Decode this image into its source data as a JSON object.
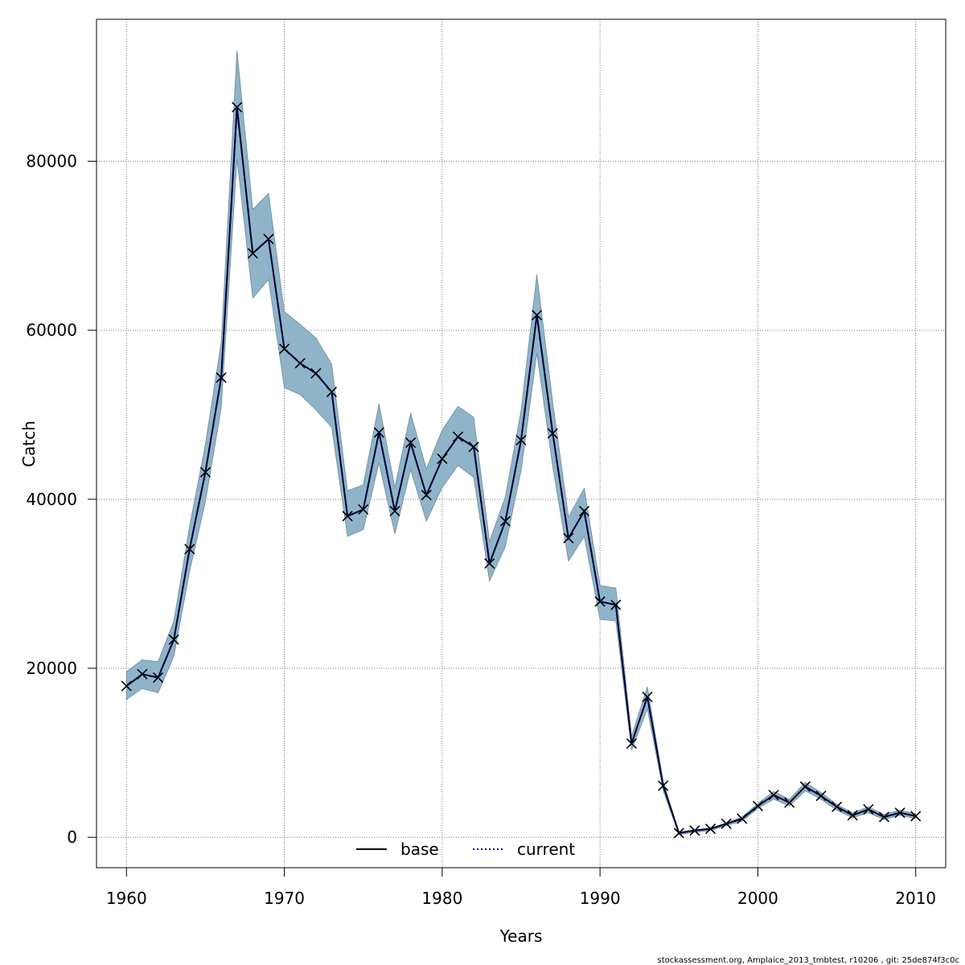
{
  "chart_data": {
    "type": "line",
    "xlabel": "Years",
    "ylabel": "Catch",
    "xlim": [
      1958.1,
      2011.9
    ],
    "ylim": [
      -3600,
      96800
    ],
    "xticks": [
      1960,
      1970,
      1980,
      1990,
      2000,
      2010
    ],
    "yticks": [
      0,
      20000,
      40000,
      60000,
      80000
    ],
    "grid": true,
    "legend_position": "bottom-center",
    "x": [
      1960,
      1961,
      1962,
      1963,
      1964,
      1965,
      1966,
      1967,
      1968,
      1969,
      1970,
      1971,
      1972,
      1973,
      1974,
      1975,
      1976,
      1977,
      1978,
      1979,
      1980,
      1981,
      1982,
      1983,
      1984,
      1985,
      1986,
      1987,
      1988,
      1989,
      1990,
      1991,
      1992,
      1993,
      1994,
      1995,
      1996,
      1997,
      1998,
      1999,
      2000,
      2001,
      2002,
      2003,
      2004,
      2005,
      2006,
      2007,
      2008,
      2009,
      2010
    ],
    "observed": [
      17900,
      19300,
      18900,
      23400,
      34100,
      43200,
      54400,
      86400,
      69100,
      70800,
      57800,
      56100,
      54900,
      52700,
      38000,
      38800,
      47900,
      38600,
      46700,
      40500,
      44800,
      47400,
      46200,
      32400,
      37400,
      47000,
      61800,
      47800,
      35400,
      38600,
      27900,
      27500,
      11100,
      16600,
      6100,
      500,
      800,
      1000,
      1600,
      2200,
      3700,
      5000,
      4100,
      6000,
      4900,
      3600,
      2600,
      3300,
      2400,
      2900,
      2500
    ],
    "series": [
      {
        "name": "base",
        "color": "#000000",
        "style": "solid",
        "values": [
          17900,
          19300,
          18900,
          23400,
          34100,
          43200,
          54400,
          86400,
          69100,
          70800,
          57800,
          56100,
          54900,
          52700,
          38000,
          38800,
          47900,
          38600,
          46700,
          40500,
          44800,
          47400,
          46200,
          32400,
          37400,
          47000,
          61800,
          47800,
          35400,
          38600,
          27900,
          27500,
          11100,
          16600,
          6100,
          500,
          800,
          1000,
          1600,
          2200,
          3700,
          5000,
          4100,
          6000,
          4900,
          3600,
          2600,
          3300,
          2400,
          2900,
          2500
        ]
      },
      {
        "name": "current",
        "color": "#00008b",
        "style": "dotted",
        "values": [
          17900,
          19300,
          18900,
          23400,
          34100,
          43200,
          54400,
          86400,
          69100,
          70800,
          57800,
          56100,
          54900,
          52700,
          38000,
          38800,
          47900,
          38600,
          46700,
          40500,
          44800,
          47400,
          46200,
          32400,
          37400,
          47000,
          61800,
          47800,
          35400,
          38600,
          27900,
          27500,
          11100,
          16600,
          6100,
          500,
          800,
          1000,
          1600,
          2200,
          3700,
          5000,
          4100,
          6000,
          4900,
          3600,
          2600,
          3300,
          2400,
          2900,
          2500
        ]
      }
    ],
    "band": {
      "color": "#8fb4c9",
      "upper": [
        19600,
        21000,
        20800,
        25600,
        36800,
        46500,
        58600,
        93100,
        74300,
        76200,
        62200,
        60700,
        59100,
        56000,
        41000,
        41700,
        51300,
        41400,
        50200,
        43600,
        48200,
        51000,
        49700,
        35000,
        40300,
        50500,
        66600,
        51500,
        37900,
        41300,
        29800,
        29500,
        12000,
        17800,
        6600,
        600,
        900,
        1100,
        1700,
        2400,
        4000,
        5400,
        4500,
        6500,
        5300,
        3900,
        2900,
        3600,
        2700,
        3200,
        2800
      ],
      "lower": [
        16300,
        17600,
        17100,
        21400,
        31500,
        39700,
        50800,
        80300,
        63800,
        66000,
        53200,
        52400,
        50600,
        48500,
        35600,
        36400,
        44300,
        35900,
        43500,
        37400,
        41400,
        44000,
        42600,
        30300,
        34400,
        43400,
        57300,
        43900,
        32700,
        35600,
        25800,
        25600,
        10300,
        15200,
        5500,
        300,
        600,
        800,
        1400,
        1900,
        3400,
        4500,
        3700,
        5500,
        4500,
        3200,
        2300,
        2900,
        2100,
        2600,
        2200
      ]
    },
    "footer": "stockassessment.org, Amplaice_2013_tmbtest, r10206 , git: 25de874f3c0c"
  }
}
